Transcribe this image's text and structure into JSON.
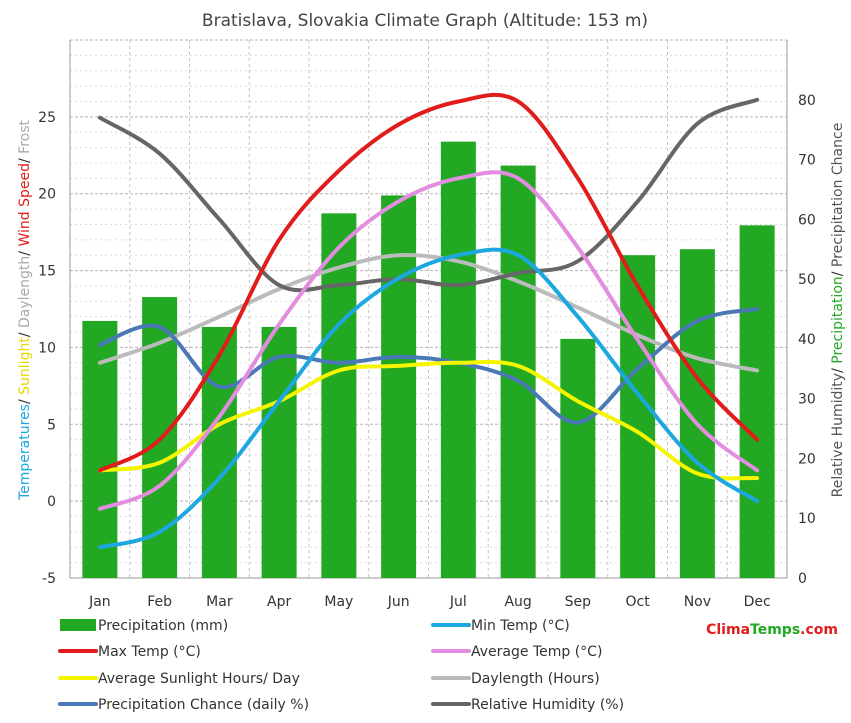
{
  "chart_data": {
    "type": "bar",
    "title": "Bratislava, Slovakia Climate Graph (Altitude: 153 m)",
    "categories": [
      "Jan",
      "Feb",
      "Mar",
      "Apr",
      "May",
      "Jun",
      "Jul",
      "Aug",
      "Sep",
      "Oct",
      "Nov",
      "Dec"
    ],
    "left_axis": {
      "label_parts": [
        {
          "text": "Temperatures",
          "color": "#1ca7e0"
        },
        {
          "text": "/ ",
          "color": "#333333"
        },
        {
          "text": "Sunlight",
          "color": "#e8d800"
        },
        {
          "text": "/ ",
          "color": "#333333"
        },
        {
          "text": "Daylength",
          "color": "#aaaaaa"
        },
        {
          "text": "/ ",
          "color": "#333333"
        },
        {
          "text": "Wind Speed",
          "color": "#e11c1c"
        },
        {
          "text": "/ ",
          "color": "#333333"
        },
        {
          "text": "Frost",
          "color": "#aaaaaa"
        }
      ],
      "ylim": [
        -5,
        30
      ],
      "ticks": [
        -5,
        0,
        5,
        10,
        15,
        20,
        25
      ]
    },
    "right_axis": {
      "label_parts": [
        {
          "text": "Relative Humidity",
          "color": "#555555"
        },
        {
          "text": "/ ",
          "color": "#333333"
        },
        {
          "text": "Precipitation",
          "color": "#22a822"
        },
        {
          "text": "/ ",
          "color": "#333333"
        },
        {
          "text": "Precipitation Chance",
          "color": "#555555"
        }
      ],
      "ylim": [
        0,
        90
      ],
      "ticks": [
        0,
        10,
        20,
        30,
        40,
        50,
        60,
        70,
        80
      ]
    },
    "grid": true,
    "legend_position": "bottom",
    "series": [
      {
        "name": "Precipitation (mm)",
        "kind": "bar",
        "axis": "right",
        "color": "#22a822",
        "values": [
          43,
          47,
          42,
          42,
          61,
          64,
          73,
          69,
          40,
          54,
          55,
          59
        ]
      },
      {
        "name": "Min Temp (°C)",
        "kind": "line",
        "axis": "left",
        "color": "#1ca7e0",
        "values": [
          -3,
          -2,
          1.5,
          6.5,
          11.5,
          14.5,
          16,
          16,
          12,
          7,
          2.5,
          0
        ]
      },
      {
        "name": "Max Temp (°C)",
        "kind": "line",
        "axis": "left",
        "color": "#e11c1c",
        "values": [
          2,
          4,
          9.5,
          17,
          21.5,
          24.5,
          26,
          26,
          21,
          14,
          8,
          4
        ]
      },
      {
        "name": "Average Temp (°C)",
        "kind": "line",
        "axis": "left",
        "color": "#e38de0",
        "values": [
          -0.5,
          1,
          5.5,
          11.5,
          16.5,
          19.5,
          21,
          21,
          16.5,
          10.5,
          5,
          2
        ]
      },
      {
        "name": "Average Sunlight Hours/ Day",
        "kind": "line",
        "axis": "left",
        "color": "#f5f500",
        "values": [
          2,
          2.5,
          5,
          6.5,
          8.5,
          8.8,
          9,
          8.8,
          6.5,
          4.5,
          1.8,
          1.5
        ]
      },
      {
        "name": "Daylength (Hours)",
        "kind": "line",
        "axis": "left",
        "color": "#bbbbbb",
        "values": [
          9,
          10.3,
          12,
          13.8,
          15.2,
          16,
          15.6,
          14.3,
          12.6,
          10.8,
          9.3,
          8.5
        ]
      },
      {
        "name": "Precipitation Chance (daily %)",
        "kind": "line",
        "axis": "right",
        "color": "#4a79b5",
        "values": [
          39,
          42,
          32,
          37,
          36,
          37,
          36,
          33,
          26,
          35,
          43,
          45
        ]
      },
      {
        "name": "Relative Humidity (%)",
        "kind": "line",
        "axis": "right",
        "color": "#666666",
        "values": [
          77,
          71,
          60,
          49,
          49,
          50,
          49,
          51,
          53,
          63,
          76,
          80
        ]
      }
    ]
  },
  "brand": {
    "part1": "Clima",
    "part2": "Temps",
    "part3": ".com",
    "color1": "#e11c1c",
    "color2": "#22a822"
  }
}
